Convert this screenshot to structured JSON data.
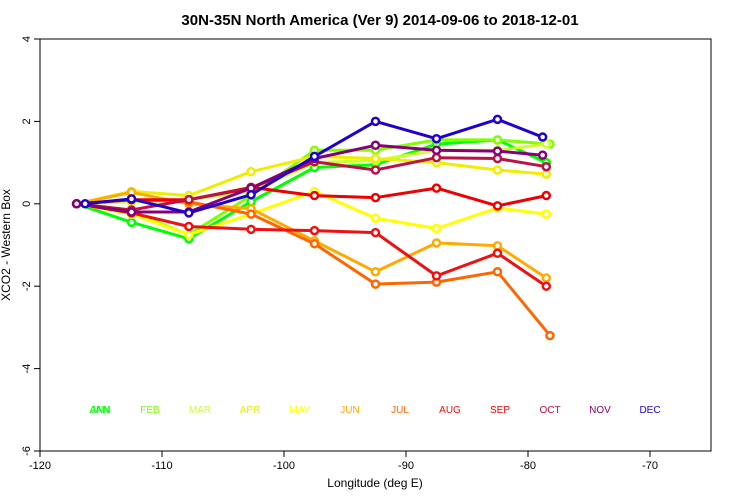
{
  "chart_data": {
    "type": "line",
    "title": "30N-35N North America (Ver 9)   2014-09-06 to 2018-12-01",
    "xlabel": "Longitude (deg E)",
    "ylabel": "XCO2 - Western Box",
    "xlim": [
      -120,
      -65
    ],
    "ylim": [
      -6,
      4
    ],
    "x_ticks": [
      -120,
      -110,
      -100,
      -90,
      -80,
      -70
    ],
    "y_ticks": [
      -6,
      -4,
      -2,
      0,
      2,
      4
    ],
    "series": [
      {
        "name": "JAN",
        "color": "#00ff00",
        "x": [
          -117,
          -112.5,
          -107.8,
          -102.7,
          -97.5,
          -92.5,
          -87.5,
          -82.5,
          -78.5
        ],
        "y": [
          0,
          -0.45,
          -0.85,
          0.05,
          0.88,
          0.95,
          1.45,
          1.55,
          1.0
        ]
      },
      {
        "name": "FEB",
        "color": "#80ff00",
        "x": [
          -117,
          -112.5,
          -107.8,
          -102.7,
          -97.5,
          -92.5,
          -87.5,
          -82.5,
          -78.2
        ],
        "y": [
          0,
          -0.2,
          -0.75,
          0.2,
          1.3,
          1.3,
          1.55,
          1.55,
          1.45
        ]
      },
      {
        "name": "MAR",
        "color": "#ccff33",
        "x": [
          -117,
          -112.5,
          -107.8,
          -102.7,
          -97.5,
          -92.5,
          -87.5,
          -82.5,
          -78.5
        ],
        "y": [
          0,
          0.05,
          0.1,
          0.3,
          1.0,
          1.05,
          1.3,
          1.3,
          1.45
        ]
      },
      {
        "name": "APR",
        "color": "#eeee00",
        "x": [
          -117,
          -112.5,
          -107.8,
          -102.7,
          -97.5,
          -92.5,
          -87.5,
          -82.5,
          -78.5
        ],
        "y": [
          0,
          0.3,
          0.2,
          0.78,
          1.15,
          1.1,
          1.0,
          0.82,
          0.72
        ]
      },
      {
        "name": "MAY",
        "color": "#ffff00",
        "x": [
          -117,
          -112.5,
          -107.8,
          -102.7,
          -97.5,
          -92.5,
          -87.5,
          -82.5,
          -78.5
        ],
        "y": [
          0,
          -0.25,
          -0.75,
          -0.25,
          0.3,
          -0.35,
          -0.6,
          -0.1,
          -0.25
        ]
      },
      {
        "name": "JUN",
        "color": "#ffaa00",
        "x": [
          -117,
          -112.5,
          -107.8,
          -102.7,
          -97.5,
          -92.5,
          -87.5,
          -82.5,
          -78.5
        ],
        "y": [
          0,
          0.28,
          0.0,
          -0.12,
          -0.9,
          -1.65,
          -0.95,
          -1.02,
          -1.8
        ]
      },
      {
        "name": "JUL",
        "color": "#ff6600",
        "x": [
          -117,
          -112.5,
          -107.8,
          -102.7,
          -97.5,
          -92.5,
          -87.5,
          -82.5,
          -78.2
        ],
        "y": [
          0,
          0.1,
          0.05,
          -0.25,
          -0.97,
          -1.95,
          -1.9,
          -1.65,
          -3.2
        ]
      },
      {
        "name": "AUG",
        "color": "#ee1111",
        "x": [
          -117,
          -112.5,
          -107.8,
          -102.7,
          -97.5,
          -92.5,
          -87.5,
          -82.5,
          -78.5
        ],
        "y": [
          0,
          -0.22,
          -0.55,
          -0.62,
          -0.65,
          -0.7,
          -1.75,
          -1.2,
          -2.0
        ]
      },
      {
        "name": "SEP",
        "color": "#ee0000",
        "x": [
          -117,
          -112.5,
          -107.8,
          -102.7,
          -97.5,
          -92.5,
          -87.5,
          -82.5,
          -78.5
        ],
        "y": [
          0,
          0.1,
          0.1,
          0.4,
          0.2,
          0.15,
          0.38,
          -0.05,
          0.2
        ]
      },
      {
        "name": "OCT",
        "color": "#bb1144",
        "x": [
          -117,
          -112.5,
          -107.8,
          -102.7,
          -97.5,
          -92.5,
          -87.5,
          -82.5,
          -78.5
        ],
        "y": [
          0,
          -0.15,
          0.1,
          0.38,
          1.02,
          0.82,
          1.12,
          1.1,
          0.9
        ]
      },
      {
        "name": "NOV",
        "color": "#880077",
        "x": [
          -117,
          -112.5,
          -107.8,
          -102.7,
          -97.5,
          -92.5,
          -87.5,
          -82.5,
          -78.8
        ],
        "y": [
          0,
          -0.2,
          -0.2,
          0.38,
          1.1,
          1.42,
          1.3,
          1.28,
          1.18
        ]
      },
      {
        "name": "DEC",
        "color": "#2200cc",
        "x": [
          -116.3,
          -112.5,
          -107.8,
          -102.7,
          -97.5,
          -92.5,
          -87.5,
          -82.5,
          -78.8
        ],
        "y": [
          0,
          0.12,
          -0.22,
          0.22,
          1.15,
          2.0,
          1.58,
          2.05,
          1.62
        ]
      }
    ],
    "legend": {
      "placement": "bottom-inside",
      "labels": [
        "JAN",
        "FEB",
        "MAR",
        "APR",
        "MAY",
        "JUN",
        "JUL",
        "AUG",
        "SEP",
        "OCT",
        "NOV",
        "DEC"
      ],
      "colors": [
        "#00ff00",
        "#80ff00",
        "#ccff33",
        "#eeee00",
        "#ffff00",
        "#ffaa00",
        "#ff6600",
        "#ee1111",
        "#ee0000",
        "#bb1144",
        "#880077",
        "#2200cc"
      ],
      "overlay_label": "ANN",
      "overlay_color": "#00ff00"
    },
    "grid": false
  }
}
